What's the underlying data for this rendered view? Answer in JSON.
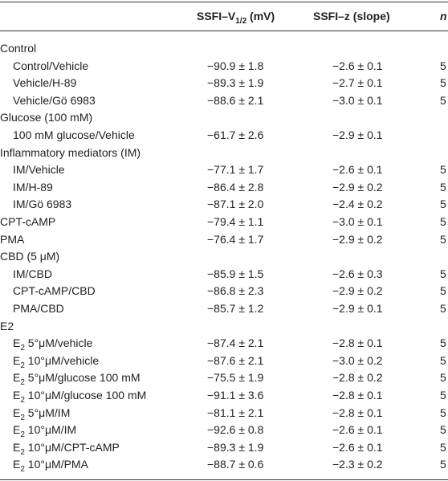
{
  "table": {
    "header": {
      "col1": {
        "main": "SSFI–V",
        "sub": "1/2",
        "rest": " (mV)"
      },
      "col2": "SSFI–z (slope)",
      "col3": "n"
    },
    "rows": [
      {
        "group": "Control"
      },
      {
        "label": "Control/Vehicle",
        "v": "−90.9 ± 1.8",
        "z": "−2.6 ± 0.1",
        "n": "5"
      },
      {
        "label": "Vehicle/H-89",
        "v": "−89.3 ± 1.9",
        "z": "−2.7 ± 0.1",
        "n": "5"
      },
      {
        "label": "Vehicle/Gö 6983",
        "v": "−88.6 ± 2.1",
        "z": "−3.0 ± 0.1",
        "n": "5"
      },
      {
        "group": "Glucose (100 mM)"
      },
      {
        "label": "100 mM glucose/Vehicle",
        "v": "−61.7 ± 2.6",
        "z": "−2.9 ± 0.1"
      },
      {
        "group": "Inflammatory mediators (IM)"
      },
      {
        "label": "IM/Vehicle",
        "v": "−77.1 ± 1.7",
        "z": "−2.6 ± 0.1",
        "n": "5"
      },
      {
        "label": "IM/H-89",
        "v": "−86.4 ± 2.8",
        "z": "−2.9 ± 0.2",
        "n": "5"
      },
      {
        "label": "IM/Gö 6983",
        "v": "−87.1 ± 2.0",
        "z": "−2.4 ± 0.2",
        "n": "5"
      },
      {
        "group": "CPT-cAMP",
        "v": "−79.4 ± 1.1",
        "z": "−3.0 ± 0.1",
        "n": "5"
      },
      {
        "group": "PMA",
        "v": "−76.4 ± 1.7",
        "z": "−2.9 ± 0.2",
        "n": "5"
      },
      {
        "group": "CBD (5 μM)"
      },
      {
        "label": "IM/CBD",
        "v": "−85.9 ± 1.5",
        "z": "−2.6 ± 0.3",
        "n": "5"
      },
      {
        "label": "CPT-cAMP/CBD",
        "v": "−86.8 ± 2.3",
        "z": "−2.9 ± 0.2",
        "n": "5"
      },
      {
        "label": "PMA/CBD",
        "v": "−85.7 ± 1.2",
        "z": "−2.9 ± 0.1",
        "n": "5"
      },
      {
        "group": "E2"
      },
      {
        "label_parts": [
          "E",
          "2",
          " 5°μM/vehicle"
        ],
        "v": "−87.4 ± 2.1",
        "z": "−2.8 ± 0.1",
        "n": "5"
      },
      {
        "label_parts": [
          "E",
          "2",
          " 10°μM/vehicle"
        ],
        "v": "−87.6 ± 2.1",
        "z": "−3.0 ± 0.2",
        "n": "5"
      },
      {
        "label_parts": [
          "E",
          "2",
          " 5°μM/glucose 100 mM"
        ],
        "v": "−75.5 ± 1.9",
        "z": "−2.8 ± 0.2",
        "n": "5"
      },
      {
        "label_parts": [
          "E",
          "2",
          " 10°μM/glucose 100 mM"
        ],
        "v": "−91.1 ± 3.6",
        "z": "−2.8 ± 0.1",
        "n": "5"
      },
      {
        "label_parts": [
          "E",
          "2",
          " 5°μM/IM"
        ],
        "v": "−81.1 ± 2.1",
        "z": "−2.8 ± 0.1",
        "n": "5"
      },
      {
        "label_parts": [
          "E",
          "2",
          " 10°μM/IM"
        ],
        "v": "−92.6 ± 0.8",
        "z": "−2.6 ± 0.1",
        "n": "5"
      },
      {
        "label_parts": [
          "E",
          "2",
          " 10°μM/CPT-cAMP"
        ],
        "v": "−89.3 ± 1.9",
        "z": "−2.6 ± 0.1",
        "n": "5"
      },
      {
        "label_parts": [
          "E",
          "2",
          " 10°μM/PMA"
        ],
        "v": "−88.7 ± 0.6",
        "z": "−2.3 ± 0.2",
        "n": "5"
      }
    ]
  }
}
